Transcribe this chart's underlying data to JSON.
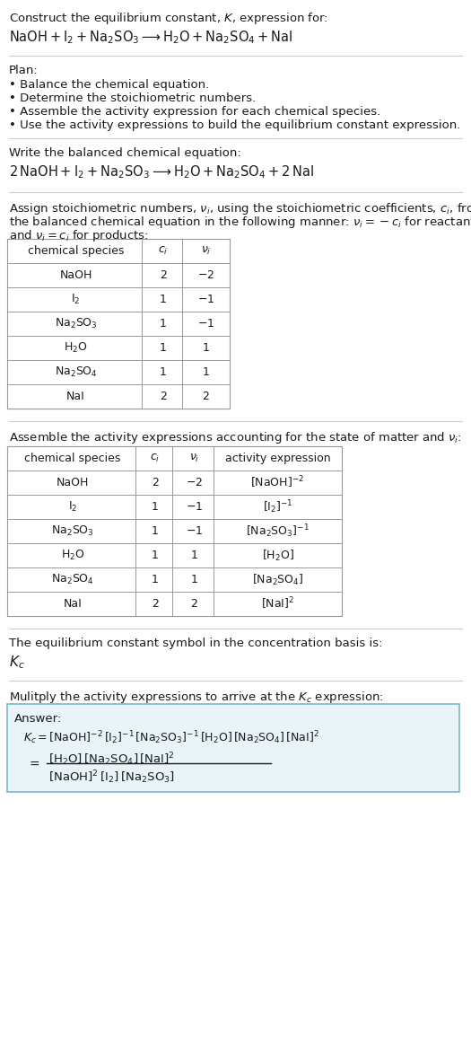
{
  "bg_color": "#ffffff",
  "text_color": "#1a1a1a",
  "line_color": "#cccccc",
  "table_border": "#999999",
  "answer_box_bg": "#e8f4f8",
  "answer_box_border": "#7ab8cc",
  "title_line1": "Construct the equilibrium constant, $K$, expression for:",
  "title_line2": "$\\mathrm{NaOH + I_2 + Na_2SO_3 \\longrightarrow H_2O + Na_2SO_4 + NaI}$",
  "plan_header": "Plan:",
  "plan_items": [
    "Balance the chemical equation.",
    "Determine the stoichiometric numbers.",
    "Assemble the activity expression for each chemical species.",
    "Use the activity expressions to build the equilibrium constant expression."
  ],
  "balanced_header": "Write the balanced chemical equation:",
  "balanced_eq": "$\\mathrm{2\\,NaOH + I_2 + Na_2SO_3 \\longrightarrow H_2O + Na_2SO_4 + 2\\,NaI}$",
  "stoich_intro_1": "Assign stoichiometric numbers, $\\nu_i$, using the stoichiometric coefficients, $c_i$, from",
  "stoich_intro_2": "the balanced chemical equation in the following manner: $\\nu_i = -c_i$ for reactants",
  "stoich_intro_3": "and $\\nu_i = c_i$ for products:",
  "table1_headers": [
    "chemical species",
    "$c_i$",
    "$\\nu_i$"
  ],
  "table1_rows": [
    [
      "NaOH",
      "2",
      "$-2$"
    ],
    [
      "$\\mathrm{I_2}$",
      "1",
      "$-1$"
    ],
    [
      "$\\mathrm{Na_2SO_3}$",
      "1",
      "$-1$"
    ],
    [
      "$\\mathrm{H_2O}$",
      "1",
      "1"
    ],
    [
      "$\\mathrm{Na_2SO_4}$",
      "1",
      "1"
    ],
    [
      "NaI",
      "2",
      "2"
    ]
  ],
  "activity_intro": "Assemble the activity expressions accounting for the state of matter and $\\nu_i$:",
  "table2_headers": [
    "chemical species",
    "$c_i$",
    "$\\nu_i$",
    "activity expression"
  ],
  "table2_rows": [
    [
      "NaOH",
      "2",
      "$-2$",
      "$[\\mathrm{NaOH}]^{-2}$"
    ],
    [
      "$\\mathrm{I_2}$",
      "1",
      "$-1$",
      "$[\\mathrm{I_2}]^{-1}$"
    ],
    [
      "$\\mathrm{Na_2SO_3}$",
      "1",
      "$-1$",
      "$[\\mathrm{Na_2SO_3}]^{-1}$"
    ],
    [
      "$\\mathrm{H_2O}$",
      "1",
      "1",
      "$[\\mathrm{H_2O}]$"
    ],
    [
      "$\\mathrm{Na_2SO_4}$",
      "1",
      "1",
      "$[\\mathrm{Na_2SO_4}]$"
    ],
    [
      "NaI",
      "2",
      "2",
      "$[\\mathrm{NaI}]^2$"
    ]
  ],
  "kc_intro": "The equilibrium constant symbol in the concentration basis is:",
  "kc_symbol": "$K_c$",
  "multiply_intro": "Mulitply the activity expressions to arrive at the $K_c$ expression:",
  "answer_label": "Answer:",
  "ans1": "$K_c = [\\mathrm{NaOH}]^{-2}\\,[\\mathrm{I_2}]^{-1}\\,[\\mathrm{Na_2SO_3}]^{-1}\\,[\\mathrm{H_2O}]\\,[\\mathrm{Na_2SO_4}]\\,[\\mathrm{NaI}]^2$",
  "ans2_num": "$[\\mathrm{H_2O}]\\,[\\mathrm{Na_2SO_4}]\\,[\\mathrm{NaI}]^2$",
  "ans2_den": "$[\\mathrm{NaOH}]^2\\,[\\mathrm{I_2}]\\,[\\mathrm{Na_2SO_3}]$"
}
